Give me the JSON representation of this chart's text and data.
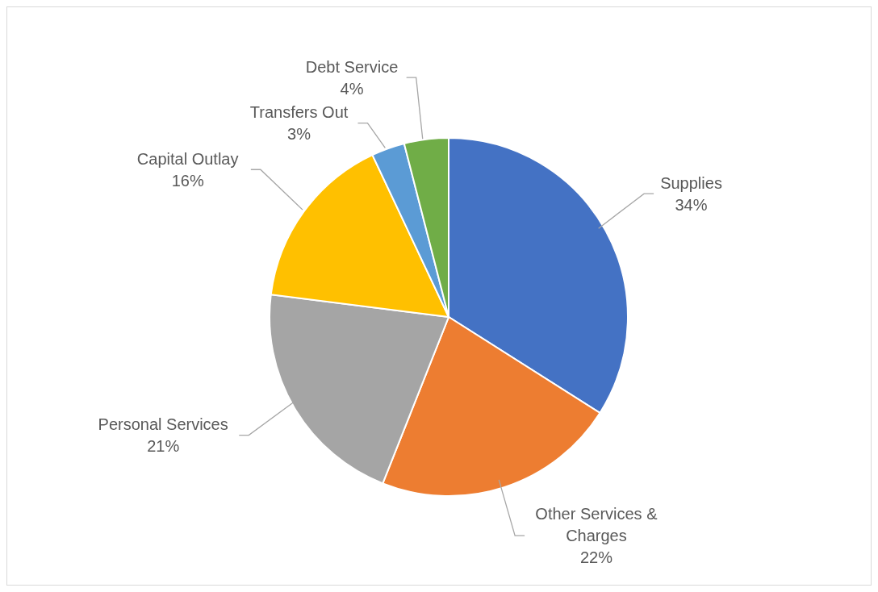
{
  "chart_data": {
    "type": "pie",
    "categories": [
      "Supplies",
      "Other Services & Charges",
      "Personal Services",
      "Capital Outlay",
      "Transfers Out",
      "Debt Service"
    ],
    "values": [
      34,
      22,
      21,
      16,
      3,
      4
    ],
    "colors": [
      "#4472c4",
      "#ed7d31",
      "#a5a5a5",
      "#ffc000",
      "#5b9bd5",
      "#70ad47"
    ],
    "value_labels": [
      "34%",
      "22%",
      "21%",
      "16%",
      "3%",
      "4%"
    ],
    "legend": false
  }
}
